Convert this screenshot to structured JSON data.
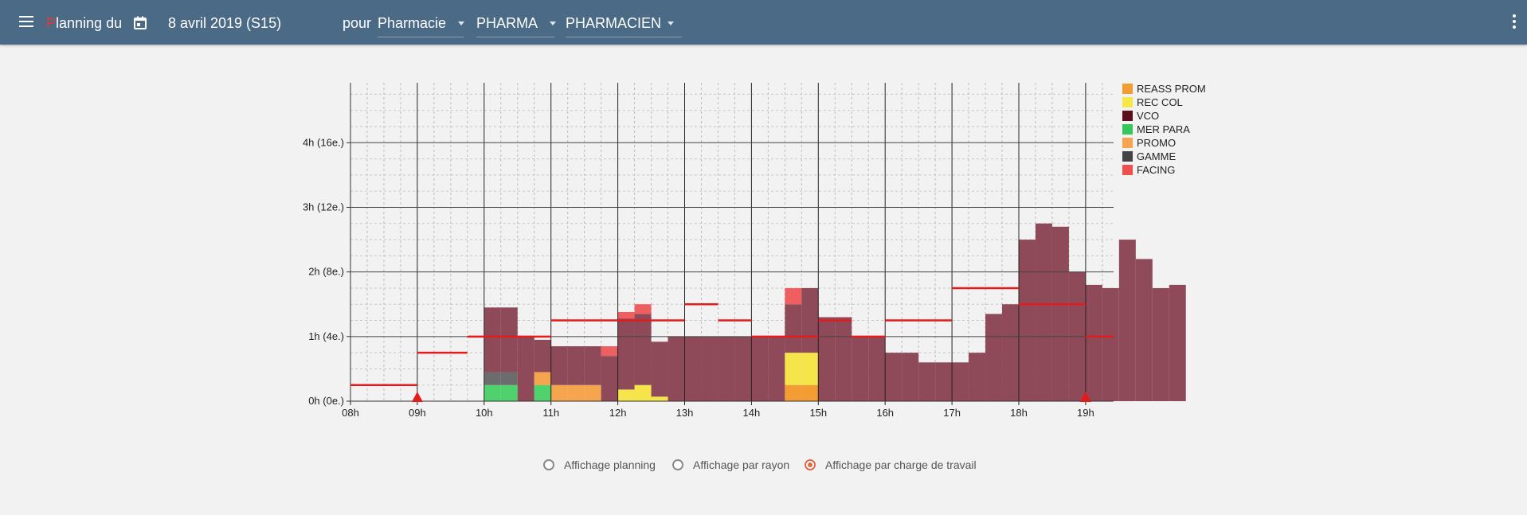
{
  "header": {
    "title_first": "P",
    "title_rest": "lanning du",
    "date": "8 avril 2019 (S15)",
    "pour_label": "pour",
    "site": "Pharmacie",
    "department": "PHARMA",
    "role": "PHARMACIEN"
  },
  "legend": [
    {
      "label": "REASS PROM",
      "color": "#f39c34"
    },
    {
      "label": "REC COL",
      "color": "#f7e84a"
    },
    {
      "label": "VCO",
      "color": "#5c0f1c"
    },
    {
      "label": "MER PARA",
      "color": "#35c759"
    },
    {
      "label": "PROMO",
      "color": "#f5a54e"
    },
    {
      "label": "GAMME",
      "color": "#444444"
    },
    {
      "label": "FACING",
      "color": "#ee5050"
    }
  ],
  "view_options": [
    {
      "label": "Affichage planning",
      "selected": false
    },
    {
      "label": "Affichage par rayon",
      "selected": false
    },
    {
      "label": "Affichage par charge de travail",
      "selected": true
    }
  ],
  "chart_data": {
    "type": "bar",
    "stacked": true,
    "x_unit": "quarter-hour slots starting at 08h00",
    "x_ticks": [
      "08h",
      "09h",
      "10h",
      "11h",
      "12h",
      "13h",
      "14h",
      "15h",
      "16h",
      "17h",
      "18h",
      "19h"
    ],
    "y_ticks": [
      "0h (0e.)",
      "1h (4e.)",
      "2h (8e.)",
      "3h (12e.)",
      "4h (16e.)"
    ],
    "ylim": [
      0,
      4.75
    ],
    "xlim": [
      "08:00",
      "19:25"
    ],
    "grid": true,
    "legend_position": "right",
    "colors": {
      "base": "#8e4a58",
      "facing": "#ee6060",
      "gamme": "#6c6c6c",
      "mer_para": "#4fd26e",
      "promo": "#f5a54e",
      "rec_col": "#f5e44a",
      "reass_prom": "#f39c34"
    },
    "series": [
      {
        "name": "base",
        "values": [
          0,
          0,
          0,
          0,
          1,
          1,
          1,
          0.5,
          0.6,
          0.6,
          0.6,
          0.7,
          1.1,
          1.1,
          0.85,
          1.0,
          1.0,
          1.0,
          1.0,
          1.0,
          1.0,
          1.0,
          0.75,
          1.0,
          1.3,
          1.3,
          1.0,
          1.0,
          0.75,
          0.75,
          0.6,
          0.6,
          0.6,
          0.75,
          1.35,
          1.5,
          2.5,
          2.75,
          2.7,
          2.0,
          1.8,
          1.75,
          2.5,
          2.2,
          1.75,
          1.8
        ]
      },
      {
        "name": "FACING",
        "values": [
          0,
          0,
          0,
          0,
          0,
          0,
          0,
          0,
          0,
          0,
          0,
          0.15,
          0.1,
          0.15,
          0,
          0,
          0,
          0,
          0,
          0,
          0,
          0,
          0.25,
          0,
          0,
          0,
          0,
          0,
          0,
          0,
          0,
          0,
          0,
          0,
          0,
          0,
          0,
          0,
          0,
          0,
          0,
          0,
          0,
          0,
          0,
          0
        ]
      },
      {
        "name": "GAMME",
        "values": [
          0,
          0,
          0,
          0,
          0.2,
          0.2,
          0,
          0,
          0,
          0,
          0,
          0,
          0,
          0,
          0,
          0,
          0,
          0,
          0,
          0,
          0,
          0,
          0,
          0,
          0,
          0,
          0,
          0,
          0,
          0,
          0,
          0,
          0,
          0,
          0,
          0,
          0,
          0,
          0,
          0,
          0,
          0,
          0,
          0,
          0,
          0
        ]
      },
      {
        "name": "MER PARA",
        "values": [
          0,
          0,
          0,
          0,
          0.25,
          0.25,
          0,
          0.25,
          0,
          0,
          0,
          0,
          0,
          0,
          0,
          0,
          0,
          0,
          0,
          0,
          0,
          0,
          0,
          0,
          0,
          0,
          0,
          0,
          0,
          0,
          0,
          0,
          0,
          0,
          0,
          0,
          0,
          0,
          0,
          0,
          0,
          0,
          0,
          0,
          0,
          0
        ]
      },
      {
        "name": "PROMO",
        "values": [
          0,
          0,
          0,
          0,
          0,
          0,
          0,
          0.2,
          0.25,
          0.25,
          0.25,
          0,
          0,
          0,
          0,
          0,
          0,
          0,
          0,
          0,
          0,
          0,
          0,
          0,
          0,
          0,
          0,
          0,
          0,
          0,
          0,
          0,
          0,
          0,
          0,
          0,
          0,
          0,
          0,
          0,
          0,
          0,
          0,
          0,
          0,
          0
        ]
      },
      {
        "name": "REC COL",
        "values": [
          0,
          0,
          0,
          0,
          0,
          0,
          0,
          0,
          0,
          0,
          0,
          0,
          0.18,
          0.25,
          0.07,
          0,
          0,
          0,
          0,
          0,
          0,
          0,
          0.5,
          0.5,
          0,
          0,
          0,
          0,
          0,
          0,
          0,
          0,
          0,
          0,
          0,
          0,
          0,
          0,
          0,
          0,
          0,
          0,
          0,
          0,
          0,
          0
        ]
      },
      {
        "name": "REASS PROM",
        "values": [
          0,
          0,
          0,
          0,
          0,
          0,
          0,
          0,
          0,
          0,
          0,
          0,
          0,
          0,
          0,
          0,
          0,
          0,
          0,
          0,
          0,
          0,
          0.25,
          0.25,
          0,
          0,
          0,
          0,
          0,
          0,
          0,
          0,
          0,
          0,
          0,
          0,
          0,
          0,
          0,
          0,
          0,
          0,
          0,
          0,
          0,
          0
        ]
      }
    ],
    "stack_order_note": "REC COL and REASS PROM sit at the bottom of their bars (REASS PROM lowest); others stack above base",
    "staffing_line": [
      {
        "from": "08:00",
        "to": "09:00",
        "y": 0.25
      },
      {
        "from": "09:00",
        "to": "09:45",
        "y": 0.75
      },
      {
        "from": "09:45",
        "to": "11:00",
        "y": 1.0
      },
      {
        "from": "11:00",
        "to": "11:30",
        "y": 1.25
      },
      {
        "from": "11:30",
        "to": "13:00",
        "y": 1.25
      },
      {
        "from": "13:00",
        "to": "13:30",
        "y": 1.5
      },
      {
        "from": "13:30",
        "to": "14:00",
        "y": 1.25
      },
      {
        "from": "14:00",
        "to": "15:00",
        "y": 1.0
      },
      {
        "from": "15:00",
        "to": "15:30",
        "y": 1.25
      },
      {
        "from": "15:30",
        "to": "16:00",
        "y": 1.0
      },
      {
        "from": "16:00",
        "to": "17:00",
        "y": 1.25
      },
      {
        "from": "17:00",
        "to": "18:00",
        "y": 1.75
      },
      {
        "from": "18:00",
        "to": "19:00",
        "y": 1.5
      },
      {
        "from": "19:00",
        "to": "19:25",
        "y": 1.0
      }
    ],
    "markers": [
      "09:00",
      "19:00"
    ]
  }
}
